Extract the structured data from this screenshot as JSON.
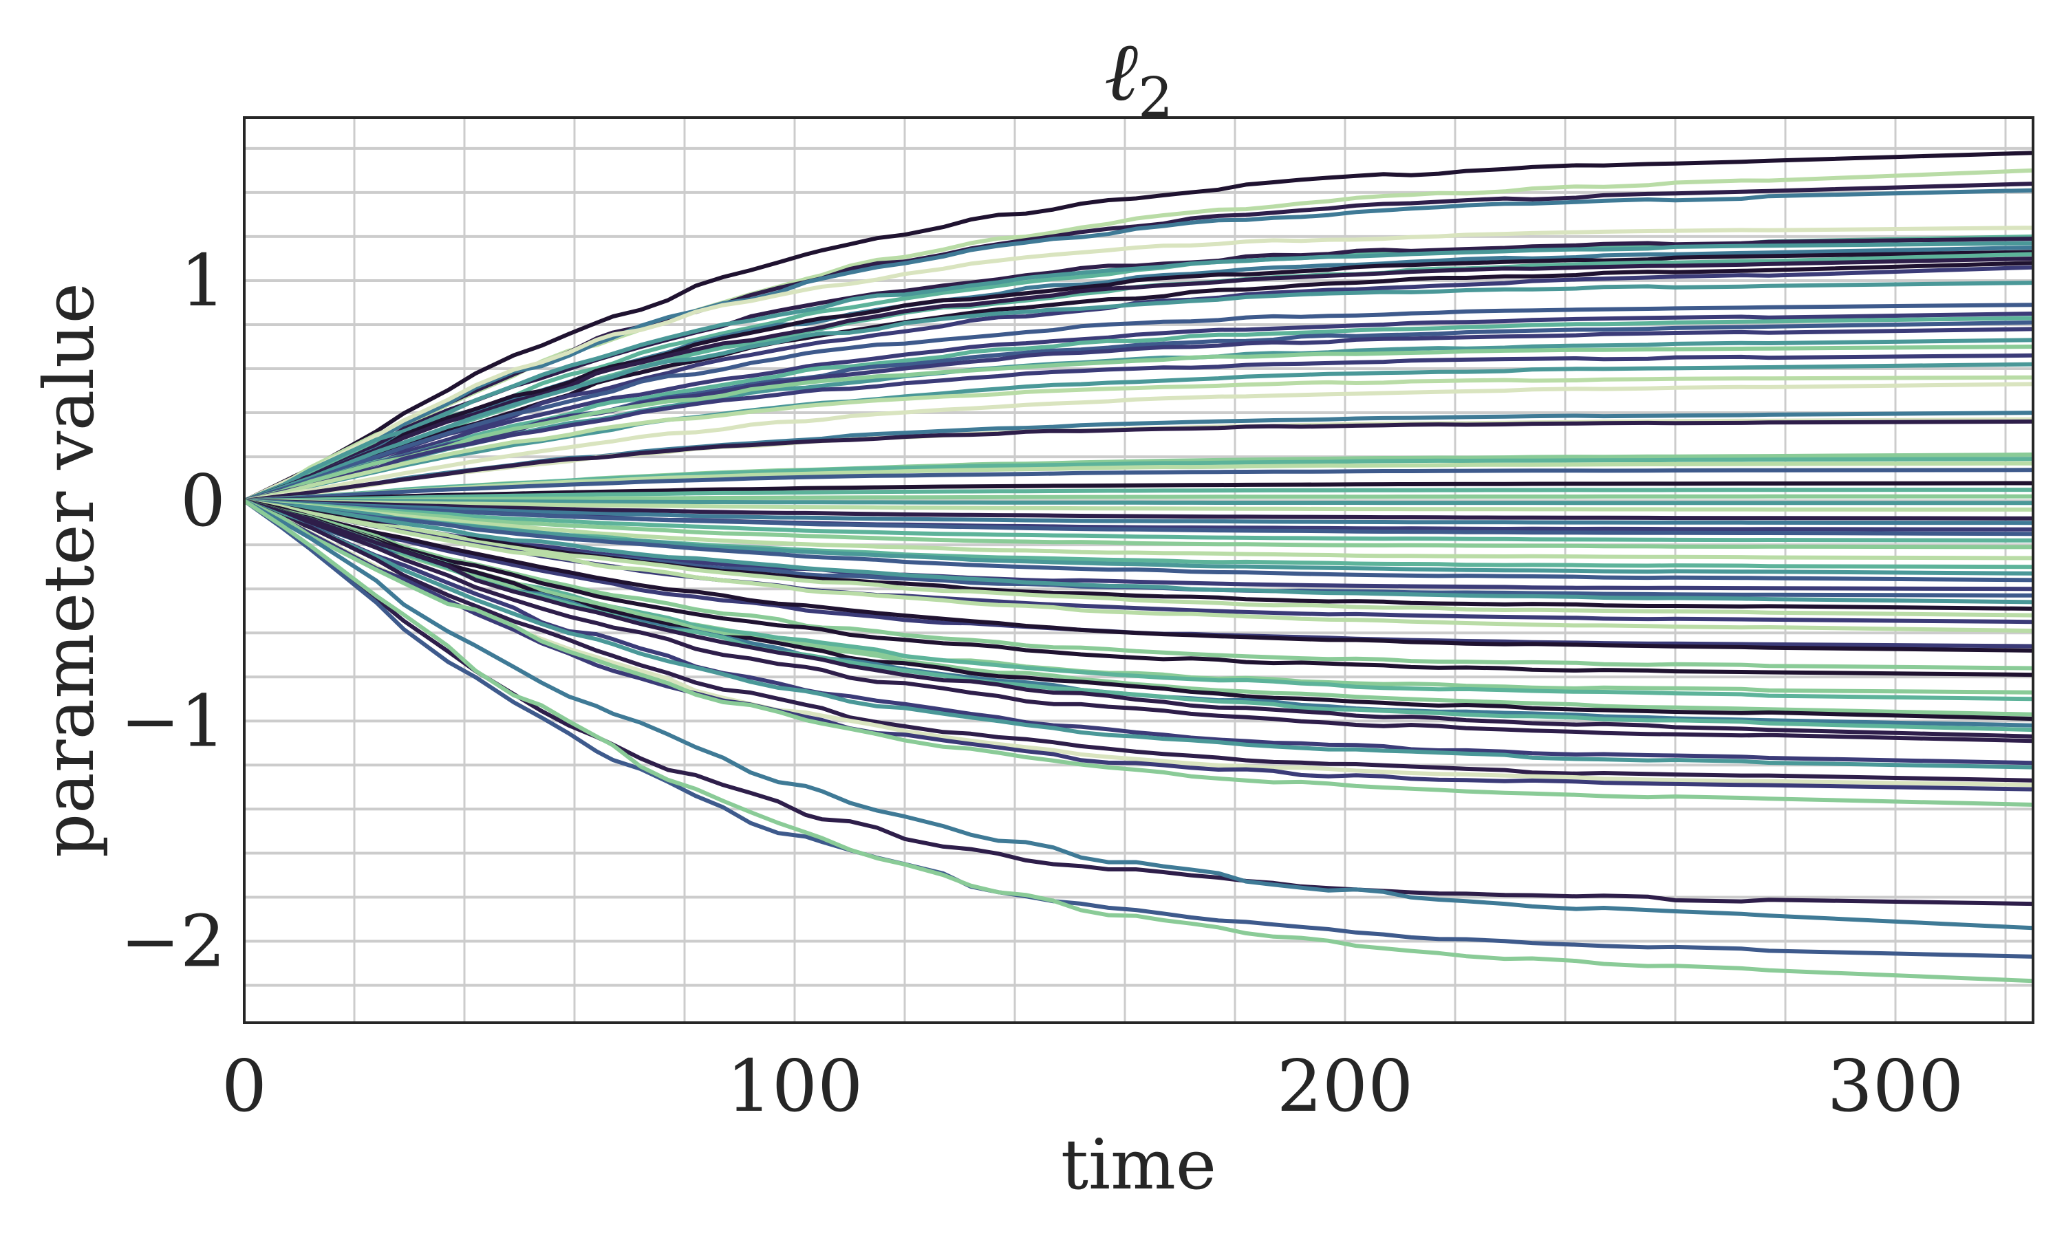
{
  "figure": {
    "title": "ℓ",
    "title_subscript": "2",
    "xlabel": "time",
    "ylabel": "parameter value"
  },
  "chart_data": {
    "type": "line",
    "title": "ℓ2",
    "xlabel": "time",
    "ylabel": "parameter value",
    "xlim": [
      0,
      325
    ],
    "ylim": [
      -2.37,
      1.74
    ],
    "xticks": [
      0,
      100,
      200,
      300
    ],
    "xtick_labels": [
      "0",
      "100",
      "200",
      "300"
    ],
    "x_minor_grid_step": 20,
    "yticks": [
      -2,
      -1,
      0,
      1
    ],
    "ytick_labels": [
      "−2",
      "−1",
      "0",
      "1"
    ],
    "y_minor_grid_step": 0.2,
    "grid": true,
    "legend": null,
    "palette": [
      "#1f1230",
      "#2e1e4a",
      "#3b3b78",
      "#3e5a8c",
      "#3f7a96",
      "#4a9898",
      "#5db39a",
      "#8acb97",
      "#b9dca6",
      "#d9e4bf"
    ],
    "description": "Roughly 100 parameter trajectories all starting at 0 at time 0, diverging in a step-like (staircase) manner and saturating to constant final values by about time 250.",
    "step_times": [
      10,
      27,
      40,
      52,
      62,
      70,
      80,
      90,
      100,
      108,
      118,
      130,
      140,
      150,
      160,
      170,
      180,
      190,
      200,
      210,
      220,
      232,
      245,
      258,
      275
    ],
    "series_final_values": [
      {
        "final": 1.58,
        "color": "#1f1230"
      },
      {
        "final": 1.5,
        "color": "#b9dca6"
      },
      {
        "final": 1.44,
        "color": "#2e1e4a"
      },
      {
        "final": 1.41,
        "color": "#3f7a96"
      },
      {
        "final": 1.24,
        "color": "#d9e4bf"
      },
      {
        "final": 1.2,
        "color": "#5db39a"
      },
      {
        "final": 1.19,
        "color": "#2e1e4a"
      },
      {
        "final": 1.17,
        "color": "#4a9898"
      },
      {
        "final": 1.15,
        "color": "#3f7a96"
      },
      {
        "final": 1.13,
        "color": "#1f1230"
      },
      {
        "final": 1.12,
        "color": "#5db39a"
      },
      {
        "final": 1.1,
        "color": "#2e1e4a"
      },
      {
        "final": 1.08,
        "color": "#1f1230"
      },
      {
        "final": 1.06,
        "color": "#3b3b78"
      },
      {
        "final": 0.99,
        "color": "#4a9898"
      },
      {
        "final": 0.89,
        "color": "#3e5a8c"
      },
      {
        "final": 0.85,
        "color": "#3b3b78"
      },
      {
        "final": 0.83,
        "color": "#5db39a"
      },
      {
        "final": 0.81,
        "color": "#3e5a8c"
      },
      {
        "final": 0.78,
        "color": "#3b3b78"
      },
      {
        "final": 0.73,
        "color": "#4a9898"
      },
      {
        "final": 0.7,
        "color": "#8acb97"
      },
      {
        "final": 0.66,
        "color": "#3b3b78"
      },
      {
        "final": 0.62,
        "color": "#4a9898"
      },
      {
        "final": 0.56,
        "color": "#b9dca6"
      },
      {
        "final": 0.53,
        "color": "#d9e4bf"
      },
      {
        "final": 0.4,
        "color": "#3f7a96"
      },
      {
        "final": 0.37,
        "color": "#d9e4bf"
      },
      {
        "final": 0.36,
        "color": "#2e1e4a"
      },
      {
        "final": 0.21,
        "color": "#8acb97"
      },
      {
        "final": 0.19,
        "color": "#5db39a"
      },
      {
        "final": 0.17,
        "color": "#b9dca6"
      },
      {
        "final": 0.14,
        "color": "#3e5a8c"
      },
      {
        "final": 0.08,
        "color": "#1f1230"
      },
      {
        "final": 0.05,
        "color": "#5db39a"
      },
      {
        "final": 0.02,
        "color": "#8acb97"
      },
      {
        "final": -0.01,
        "color": "#4a9898"
      },
      {
        "final": -0.04,
        "color": "#b9dca6"
      },
      {
        "final": -0.08,
        "color": "#2e1e4a"
      },
      {
        "final": -0.1,
        "color": "#3f7a96"
      },
      {
        "final": -0.13,
        "color": "#3b3b78"
      },
      {
        "final": -0.15,
        "color": "#3e5a8c"
      },
      {
        "final": -0.18,
        "color": "#5db39a"
      },
      {
        "final": -0.21,
        "color": "#8acb97"
      },
      {
        "final": -0.26,
        "color": "#b9dca6"
      },
      {
        "final": -0.3,
        "color": "#5db39a"
      },
      {
        "final": -0.33,
        "color": "#4a9898"
      },
      {
        "final": -0.36,
        "color": "#3e5a8c"
      },
      {
        "final": -0.4,
        "color": "#3b3b78"
      },
      {
        "final": -0.43,
        "color": "#3e5a8c"
      },
      {
        "final": -0.46,
        "color": "#4a9898"
      },
      {
        "final": -0.49,
        "color": "#1f1230"
      },
      {
        "final": -0.52,
        "color": "#b9dca6"
      },
      {
        "final": -0.55,
        "color": "#3b3b78"
      },
      {
        "final": -0.59,
        "color": "#b9dca6"
      },
      {
        "final": -0.66,
        "color": "#3b3b78"
      },
      {
        "final": -0.68,
        "color": "#1f1230"
      },
      {
        "final": -0.76,
        "color": "#8acb97"
      },
      {
        "final": -0.79,
        "color": "#1f1230"
      },
      {
        "final": -0.87,
        "color": "#8acb97"
      },
      {
        "final": -0.9,
        "color": "#5db39a"
      },
      {
        "final": -0.97,
        "color": "#8acb97"
      },
      {
        "final": -0.99,
        "color": "#1f1230"
      },
      {
        "final": -1.02,
        "color": "#3f7a96"
      },
      {
        "final": -1.04,
        "color": "#5db39a"
      },
      {
        "final": -1.07,
        "color": "#2e1e4a"
      },
      {
        "final": -1.09,
        "color": "#2e1e4a"
      },
      {
        "final": -1.19,
        "color": "#3b3b78"
      },
      {
        "final": -1.21,
        "color": "#4a9898"
      },
      {
        "final": -1.27,
        "color": "#2e1e4a"
      },
      {
        "final": -1.29,
        "color": "#d9e4bf"
      },
      {
        "final": -1.31,
        "color": "#3b3b78"
      },
      {
        "final": -1.38,
        "color": "#8acb97"
      },
      {
        "final": -1.83,
        "color": "#2e1e4a"
      },
      {
        "final": -1.94,
        "color": "#3f7a96"
      },
      {
        "final": -2.07,
        "color": "#3e5a8c"
      },
      {
        "final": -2.18,
        "color": "#8acb97"
      }
    ]
  },
  "style": {
    "frame_color": "#262626",
    "grid_color": "#cccccc",
    "text_color": "#262626",
    "background": "#ffffff"
  }
}
